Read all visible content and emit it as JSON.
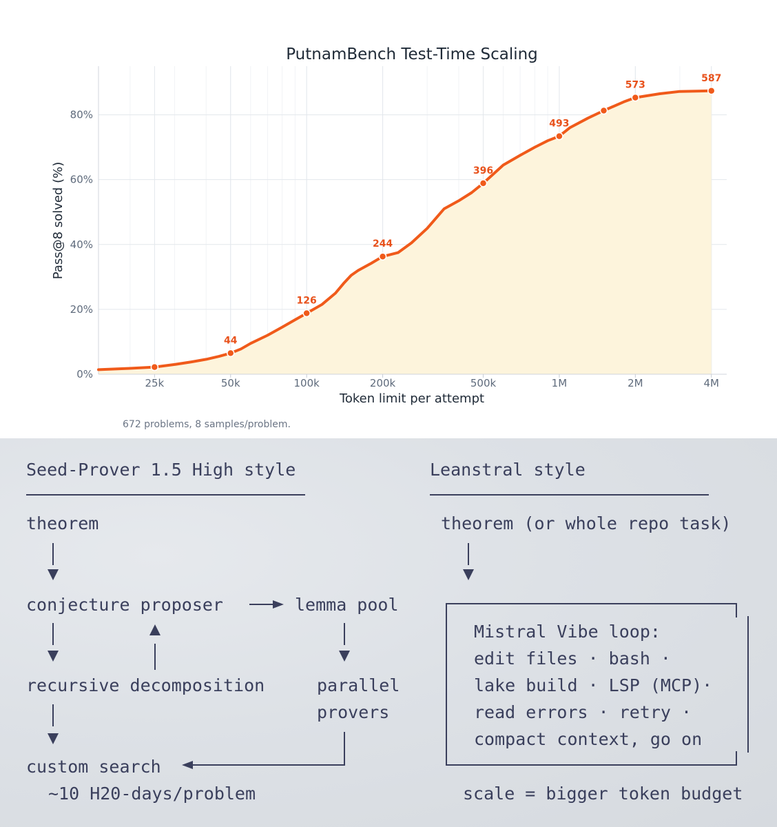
{
  "chart_data": {
    "type": "line",
    "title": "PutnamBench Test-Time Scaling",
    "xlabel": "Token limit per attempt",
    "ylabel": "Pass@8 solved (%)",
    "x_scale": "log",
    "xlim": [
      15000,
      4600000
    ],
    "ylim": [
      0,
      95
    ],
    "grid": true,
    "xticks": [
      {
        "value": 25000,
        "label": "25k"
      },
      {
        "value": 50000,
        "label": "50k"
      },
      {
        "value": 100000,
        "label": "100k"
      },
      {
        "value": 200000,
        "label": "200k"
      },
      {
        "value": 500000,
        "label": "500k"
      },
      {
        "value": 1000000,
        "label": "1M"
      },
      {
        "value": 2000000,
        "label": "2M"
      },
      {
        "value": 4000000,
        "label": "4M"
      }
    ],
    "yticks": [
      {
        "value": 0,
        "label": "0%"
      },
      {
        "value": 20,
        "label": "20%"
      },
      {
        "value": 40,
        "label": "40%"
      },
      {
        "value": 60,
        "label": "60%"
      },
      {
        "value": 80,
        "label": "80%"
      }
    ],
    "series": [
      {
        "color": "#f05a1a",
        "fill": "#fdf4dc",
        "x": [
          15000,
          20000,
          25000,
          30000,
          35000,
          40000,
          45000,
          50000,
          55000,
          60000,
          70000,
          80000,
          90000,
          100000,
          115000,
          130000,
          140000,
          150000,
          160000,
          180000,
          200000,
          230000,
          260000,
          300000,
          350000,
          400000,
          450000,
          500000,
          600000,
          700000,
          800000,
          900000,
          1000000,
          1100000,
          1300000,
          1500000,
          1800000,
          2000000,
          2500000,
          3000000,
          4000000
        ],
        "y": [
          1.4,
          1.8,
          2.2,
          3.0,
          3.8,
          4.6,
          5.5,
          6.5,
          7.8,
          9.5,
          12.0,
          14.5,
          16.8,
          18.8,
          21.5,
          25.0,
          28.0,
          30.5,
          32.0,
          34.2,
          36.3,
          37.5,
          40.5,
          45.0,
          51.0,
          53.5,
          56.0,
          58.9,
          64.5,
          67.5,
          70.0,
          72.0,
          73.4,
          76.0,
          79.0,
          81.3,
          84.0,
          85.3,
          86.5,
          87.2,
          87.4
        ]
      }
    ],
    "markers": [
      {
        "x": 25000,
        "y": 2.2
      },
      {
        "x": 50000,
        "y": 6.5,
        "label": "44"
      },
      {
        "x": 100000,
        "y": 18.8,
        "label": "126"
      },
      {
        "x": 200000,
        "y": 36.3,
        "label": "244"
      },
      {
        "x": 500000,
        "y": 58.9,
        "label": "396"
      },
      {
        "x": 1000000,
        "y": 73.4,
        "label": "493"
      },
      {
        "x": 1500000,
        "y": 81.3
      },
      {
        "x": 2000000,
        "y": 85.3,
        "label": "573"
      },
      {
        "x": 4000000,
        "y": 87.4,
        "label": "587"
      }
    ]
  },
  "note": "672 problems, 8 samples/problem.",
  "diagram": {
    "left": {
      "heading": "Seed-Prover 1.5 High style",
      "theorem": "theorem",
      "conjecture": "conjecture proposer",
      "lemma_pool": "lemma pool",
      "recursive": "recursive decomposition",
      "parallel_1": "parallel",
      "parallel_2": "provers",
      "custom_search": "custom search",
      "cost": "~10 H20-days/problem"
    },
    "right": {
      "heading": "Leanstral style",
      "theorem": "theorem (or whole repo task)",
      "loop_lines": [
        "Mistral Vibe loop:",
        "edit files · bash ·",
        "lake build · LSP (MCP)·",
        "read errors · retry ·",
        "compact context, go on"
      ],
      "scale": "scale = bigger token budget"
    }
  }
}
